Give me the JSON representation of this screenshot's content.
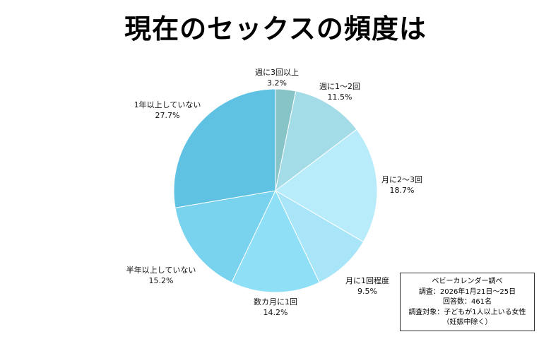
{
  "chart_data": {
    "type": "pie",
    "title": "現在のセックスの頻度は",
    "slices": [
      {
        "label": "週に3回以上",
        "value": 3.2,
        "display": "3.2%",
        "color": "#86c4c8"
      },
      {
        "label": "週に1～2回",
        "value": 11.5,
        "display": "11.5%",
        "color": "#a3dbe6"
      },
      {
        "label": "月に2～3回",
        "value": 18.7,
        "display": "18.7%",
        "color": "#b8ecfa"
      },
      {
        "label": "月に1回程度",
        "value": 9.5,
        "display": "9.5%",
        "color": "#a8e5f8"
      },
      {
        "label": "数カ月に1回",
        "value": 14.2,
        "display": "14.2%",
        "color": "#8fe0f7"
      },
      {
        "label": "半年以上していない",
        "value": 15.2,
        "display": "15.2%",
        "color": "#79d3ee"
      },
      {
        "label": "1年以上していない",
        "value": 27.7,
        "display": "27.7%",
        "color": "#5fc2e2"
      }
    ],
    "start": "12 o'clock",
    "direction": "clockwise",
    "legend": "none"
  },
  "note": {
    "lines": [
      "ベビーカレンダー調べ",
      "調査：2026年1月21日～25日",
      "回答数：461名",
      "調査対象：子どもが1人以上いる女性",
      "（妊娠中除く）"
    ]
  }
}
